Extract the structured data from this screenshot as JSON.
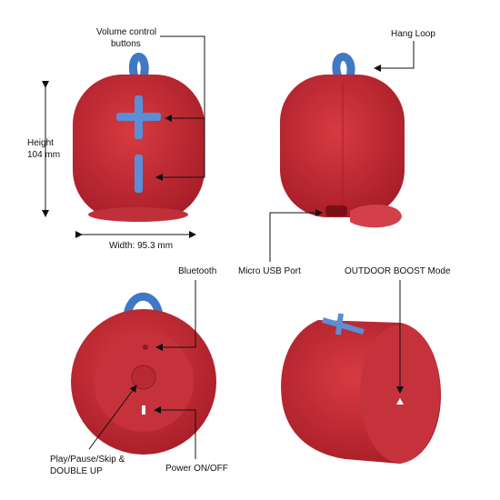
{
  "callouts": {
    "volume": {
      "lines": [
        "Volume control",
        "buttons"
      ]
    },
    "hang_loop": {
      "lines": [
        "Hang Loop"
      ]
    },
    "height": {
      "lines": [
        "Height",
        "104 mm"
      ]
    },
    "width": {
      "lines": [
        "Width: 95.3 mm"
      ]
    },
    "bluetooth": {
      "lines": [
        "Bluetooth"
      ]
    },
    "usb": {
      "lines": [
        "Micro USB Port"
      ]
    },
    "outdoor": {
      "lines": [
        "OUTDOOR BOOST Mode"
      ]
    },
    "play": {
      "lines": [
        "Play/Pause/Skip &",
        "DOUBLE UP"
      ]
    },
    "power": {
      "lines": [
        "Power ON/OFF"
      ]
    }
  }
}
